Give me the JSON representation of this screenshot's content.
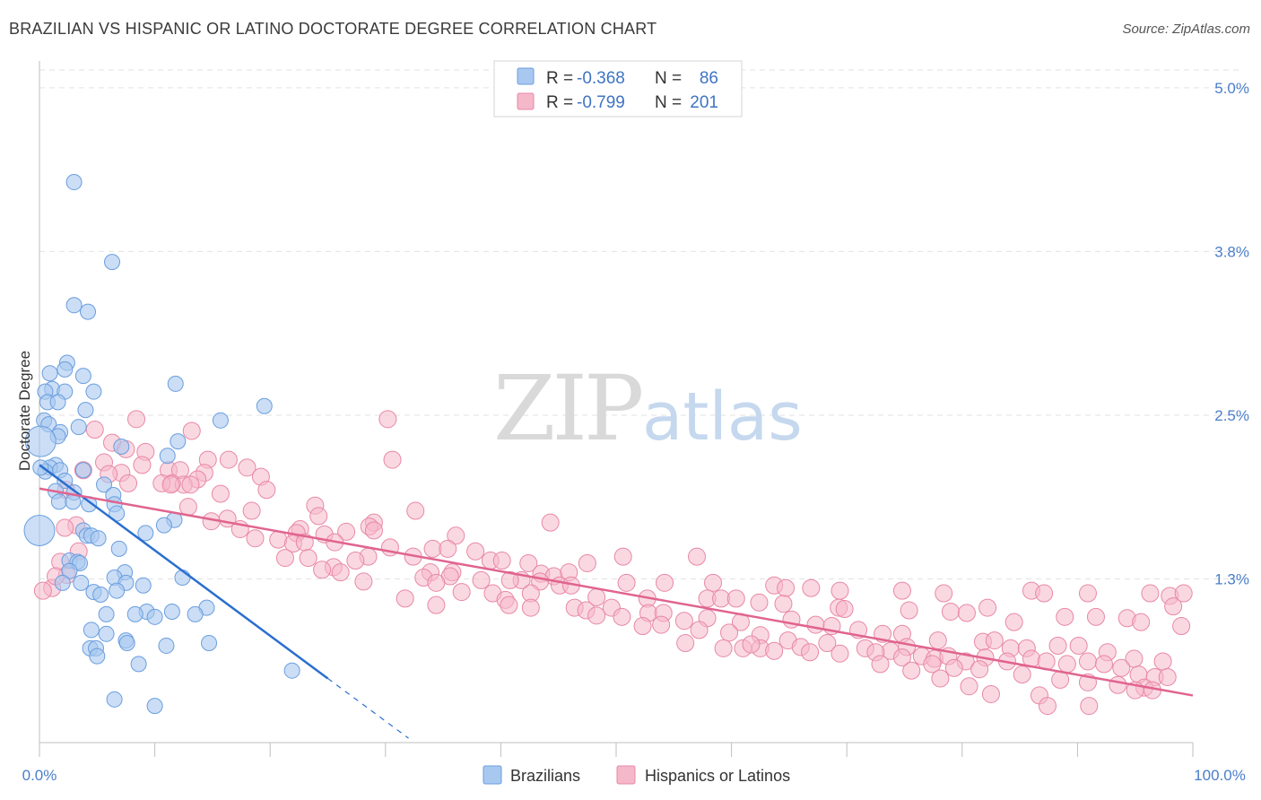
{
  "title": "BRAZILIAN VS HISPANIC OR LATINO DOCTORATE DEGREE CORRELATION CHART",
  "source": "Source: ZipAtlas.com",
  "watermark": {
    "zip": "ZIP",
    "atlas": "atlas"
  },
  "colors": {
    "blue_fill": "#a9c8f0",
    "blue_stroke": "#6a9ede",
    "blue_line": "#2a6fcf",
    "pink_fill": "#f5b8cb",
    "pink_stroke": "#e888a6",
    "pink_line": "#e0648f",
    "grid": "#e2e2e2",
    "axis_text": "#4a7ec9"
  },
  "legend": {
    "rows": [
      {
        "r_label": "R =",
        "r_value": "-0.368",
        "n_label": "N =",
        "n_value": "86"
      },
      {
        "r_label": "R =",
        "r_value": "-0.799",
        "n_label": "N =",
        "n_value": "201"
      }
    ]
  },
  "bottom_legend": [
    "Brazilians",
    "Hispanics or Latinos"
  ],
  "chart_data": {
    "type": "scatter",
    "title": "BRAZILIAN VS HISPANIC OR LATINO DOCTORATE DEGREE CORRELATION CHART",
    "ylabel": "Doctorate Degree",
    "xlabel": "",
    "x_tick_labels": [
      "0.0%",
      "100.0%"
    ],
    "y_tick_labels": [
      "5.0%",
      "3.8%",
      "2.5%",
      "1.3%"
    ],
    "y_ticks": [
      5.0,
      3.75,
      2.5,
      1.25
    ],
    "xlim": [
      0,
      100
    ],
    "ylim": [
      0,
      5.15
    ],
    "grid": true,
    "legend_position": "top-center",
    "series": [
      {
        "name": "Brazilians",
        "color": "#a9c8f0",
        "trend": {
          "x0": 0,
          "y0": 2.12,
          "x1": 25,
          "y1": 0.49,
          "dash_to_x": 32
        },
        "points": [
          [
            3,
            4.28
          ],
          [
            6.3,
            3.67
          ],
          [
            3,
            3.34
          ],
          [
            4.2,
            3.29
          ],
          [
            2.4,
            2.9
          ],
          [
            0.9,
            2.82
          ],
          [
            2.2,
            2.85
          ],
          [
            3.8,
            2.8
          ],
          [
            11.8,
            2.74
          ],
          [
            1.1,
            2.7
          ],
          [
            0.5,
            2.68
          ],
          [
            2.2,
            2.68
          ],
          [
            4.7,
            2.68
          ],
          [
            0.7,
            2.6
          ],
          [
            1.6,
            2.6
          ],
          [
            19.5,
            2.57
          ],
          [
            4,
            2.54
          ],
          [
            15.7,
            2.46
          ],
          [
            0.4,
            2.46
          ],
          [
            0.8,
            2.43
          ],
          [
            3.4,
            2.41
          ],
          [
            1.8,
            2.37
          ],
          [
            1.6,
            2.34
          ],
          [
            12,
            2.3
          ],
          [
            7.1,
            2.26
          ],
          [
            11.1,
            2.19
          ],
          [
            1.4,
            2.12
          ],
          [
            0.9,
            2.1
          ],
          [
            1.8,
            2.08
          ],
          [
            0.5,
            2.07
          ],
          [
            3.8,
            2.08
          ],
          [
            0.1,
            2.1
          ],
          [
            2.2,
            2.0
          ],
          [
            5.6,
            1.97
          ],
          [
            1.4,
            1.92
          ],
          [
            3,
            1.91
          ],
          [
            6.4,
            1.89
          ],
          [
            1.7,
            1.84
          ],
          [
            2.9,
            1.84
          ],
          [
            6.5,
            1.82
          ],
          [
            4.3,
            1.82
          ],
          [
            6.7,
            1.75
          ],
          [
            0,
            1.62
          ],
          [
            11.7,
            1.7
          ],
          [
            10.8,
            1.66
          ],
          [
            3.8,
            1.62
          ],
          [
            9.2,
            1.6
          ],
          [
            4.1,
            1.58
          ],
          [
            4.5,
            1.58
          ],
          [
            5.1,
            1.56
          ],
          [
            6.9,
            1.48
          ],
          [
            2.6,
            1.39
          ],
          [
            3.3,
            1.38
          ],
          [
            3.5,
            1.37
          ],
          [
            2.6,
            1.31
          ],
          [
            7.4,
            1.3
          ],
          [
            6.5,
            1.26
          ],
          [
            12.4,
            1.26
          ],
          [
            7.5,
            1.22
          ],
          [
            2,
            1.22
          ],
          [
            3.6,
            1.22
          ],
          [
            9,
            1.2
          ],
          [
            6.7,
            1.16
          ],
          [
            4.7,
            1.15
          ],
          [
            5.3,
            1.13
          ],
          [
            14.5,
            1.03
          ],
          [
            9.3,
            1.0
          ],
          [
            11.5,
            1.0
          ],
          [
            8.3,
            0.98
          ],
          [
            5.8,
            0.98
          ],
          [
            10,
            0.96
          ],
          [
            13.5,
            0.98
          ],
          [
            4.5,
            0.86
          ],
          [
            5.8,
            0.83
          ],
          [
            7.5,
            0.78
          ],
          [
            7.6,
            0.76
          ],
          [
            14.7,
            0.76
          ],
          [
            11,
            0.74
          ],
          [
            4.4,
            0.72
          ],
          [
            4.9,
            0.72
          ],
          [
            5,
            0.66
          ],
          [
            8.6,
            0.6
          ],
          [
            21.9,
            0.55
          ],
          [
            6.5,
            0.33
          ],
          [
            10,
            0.28
          ],
          [
            0.1,
            2.3
          ]
        ]
      },
      {
        "name": "Hispanics or Latinos",
        "color": "#f5b8cb",
        "trend": {
          "x0": 0,
          "y0": 1.94,
          "x1": 100,
          "y1": 0.36
        },
        "points": [
          [
            30.2,
            2.47
          ],
          [
            8.4,
            2.47
          ],
          [
            4.8,
            2.39
          ],
          [
            13.2,
            2.38
          ],
          [
            6.3,
            2.29
          ],
          [
            7.5,
            2.24
          ],
          [
            9.2,
            2.22
          ],
          [
            16.4,
            2.16
          ],
          [
            14.6,
            2.16
          ],
          [
            30.6,
            2.16
          ],
          [
            5.6,
            2.14
          ],
          [
            8.9,
            2.12
          ],
          [
            18,
            2.1
          ],
          [
            11.2,
            2.08
          ],
          [
            12.2,
            2.08
          ],
          [
            3.8,
            2.08
          ],
          [
            7.1,
            2.06
          ],
          [
            14.3,
            2.06
          ],
          [
            6,
            2.05
          ],
          [
            19.2,
            2.03
          ],
          [
            13.7,
            2.01
          ],
          [
            11.5,
            1.98
          ],
          [
            12.5,
            1.97
          ],
          [
            10.6,
            1.98
          ],
          [
            19.7,
            1.93
          ],
          [
            2.3,
            1.93
          ],
          [
            15.7,
            1.9
          ],
          [
            7.7,
            1.98
          ],
          [
            11.4,
            1.97
          ],
          [
            13.1,
            1.97
          ],
          [
            12.9,
            1.8
          ],
          [
            23.9,
            1.81
          ],
          [
            32.6,
            1.77
          ],
          [
            18.4,
            1.77
          ],
          [
            24.2,
            1.73
          ],
          [
            16.3,
            1.71
          ],
          [
            14.9,
            1.69
          ],
          [
            17.4,
            1.63
          ],
          [
            22.6,
            1.63
          ],
          [
            29,
            1.68
          ],
          [
            3.2,
            1.66
          ],
          [
            22.3,
            1.6
          ],
          [
            24.7,
            1.59
          ],
          [
            26.6,
            1.61
          ],
          [
            28.6,
            1.65
          ],
          [
            29,
            1.62
          ],
          [
            44.3,
            1.68
          ],
          [
            36.1,
            1.58
          ],
          [
            18.7,
            1.56
          ],
          [
            20.7,
            1.55
          ],
          [
            22,
            1.52
          ],
          [
            23,
            1.53
          ],
          [
            25.6,
            1.53
          ],
          [
            30.4,
            1.49
          ],
          [
            34.1,
            1.48
          ],
          [
            35.4,
            1.48
          ],
          [
            37.8,
            1.46
          ],
          [
            28.5,
            1.42
          ],
          [
            21.3,
            1.41
          ],
          [
            23.3,
            1.41
          ],
          [
            27.4,
            1.39
          ],
          [
            32.4,
            1.42
          ],
          [
            39.1,
            1.39
          ],
          [
            40.1,
            1.39
          ],
          [
            42.4,
            1.37
          ],
          [
            47.5,
            1.37
          ],
          [
            50.6,
            1.42
          ],
          [
            57,
            1.42
          ],
          [
            1.8,
            1.38
          ],
          [
            2.4,
            1.28
          ],
          [
            3.4,
            1.46
          ],
          [
            25.5,
            1.34
          ],
          [
            24.5,
            1.32
          ],
          [
            26.1,
            1.3
          ],
          [
            33.9,
            1.3
          ],
          [
            35.8,
            1.3
          ],
          [
            33.3,
            1.26
          ],
          [
            43.5,
            1.29
          ],
          [
            44.6,
            1.27
          ],
          [
            45.9,
            1.3
          ],
          [
            41.8,
            1.24
          ],
          [
            40.8,
            1.24
          ],
          [
            38.3,
            1.24
          ],
          [
            35.6,
            1.27
          ],
          [
            28.1,
            1.23
          ],
          [
            34.4,
            1.22
          ],
          [
            43.4,
            1.23
          ],
          [
            45.1,
            1.2
          ],
          [
            46.1,
            1.2
          ],
          [
            50.9,
            1.22
          ],
          [
            54.2,
            1.22
          ],
          [
            58.4,
            1.22
          ],
          [
            63.7,
            1.2
          ],
          [
            64.7,
            1.18
          ],
          [
            66.9,
            1.18
          ],
          [
            69.4,
            1.16
          ],
          [
            74.8,
            1.16
          ],
          [
            78.4,
            1.14
          ],
          [
            86,
            1.16
          ],
          [
            87.1,
            1.14
          ],
          [
            90.9,
            1.14
          ],
          [
            96.3,
            1.14
          ],
          [
            98,
            1.12
          ],
          [
            98.3,
            1.04
          ],
          [
            99.2,
            1.14
          ],
          [
            36.6,
            1.15
          ],
          [
            39.3,
            1.14
          ],
          [
            40.4,
            1.09
          ],
          [
            42.6,
            1.14
          ],
          [
            48.3,
            1.11
          ],
          [
            52.7,
            1.1
          ],
          [
            57.9,
            1.1
          ],
          [
            59.1,
            1.1
          ],
          [
            60.4,
            1.1
          ],
          [
            62.4,
            1.07
          ],
          [
            64.5,
            1.06
          ],
          [
            69.3,
            1.03
          ],
          [
            69.8,
            1.02
          ],
          [
            75.4,
            1.01
          ],
          [
            79,
            1.0
          ],
          [
            80.4,
            0.99
          ],
          [
            82.2,
            1.03
          ],
          [
            84.5,
            0.92
          ],
          [
            88.9,
            0.96
          ],
          [
            91.6,
            0.96
          ],
          [
            94.3,
            0.95
          ],
          [
            95.5,
            0.92
          ],
          [
            99,
            0.89
          ],
          [
            31.7,
            1.1
          ],
          [
            34.4,
            1.05
          ],
          [
            40.7,
            1.05
          ],
          [
            42.6,
            1.03
          ],
          [
            46.4,
            1.03
          ],
          [
            47.4,
            1.01
          ],
          [
            49.6,
            1.03
          ],
          [
            52.8,
            0.99
          ],
          [
            54.1,
            0.99
          ],
          [
            55.9,
            0.93
          ],
          [
            57.9,
            0.95
          ],
          [
            60.8,
            0.92
          ],
          [
            65.2,
            0.94
          ],
          [
            67.3,
            0.9
          ],
          [
            68.7,
            0.89
          ],
          [
            71,
            0.86
          ],
          [
            73.1,
            0.83
          ],
          [
            74.8,
            0.83
          ],
          [
            77.9,
            0.78
          ],
          [
            81.8,
            0.77
          ],
          [
            82.8,
            0.78
          ],
          [
            84.2,
            0.72
          ],
          [
            85.6,
            0.72
          ],
          [
            88.3,
            0.74
          ],
          [
            90.1,
            0.74
          ],
          [
            92.6,
            0.69
          ],
          [
            94.9,
            0.64
          ],
          [
            97.4,
            0.62
          ],
          [
            48.3,
            0.97
          ],
          [
            50.5,
            0.96
          ],
          [
            52.3,
            0.89
          ],
          [
            53.9,
            0.9
          ],
          [
            57.2,
            0.86
          ],
          [
            59.8,
            0.84
          ],
          [
            62.5,
            0.82
          ],
          [
            64.9,
            0.78
          ],
          [
            66,
            0.73
          ],
          [
            68.3,
            0.76
          ],
          [
            71.6,
            0.72
          ],
          [
            73.8,
            0.7
          ],
          [
            75.2,
            0.73
          ],
          [
            76.5,
            0.66
          ],
          [
            77.6,
            0.64
          ],
          [
            78.8,
            0.66
          ],
          [
            80.3,
            0.62
          ],
          [
            82,
            0.65
          ],
          [
            83.9,
            0.62
          ],
          [
            86,
            0.64
          ],
          [
            87.3,
            0.62
          ],
          [
            89.1,
            0.6
          ],
          [
            90.9,
            0.62
          ],
          [
            92.3,
            0.6
          ],
          [
            93.8,
            0.57
          ],
          [
            95.3,
            0.52
          ],
          [
            96.7,
            0.5
          ],
          [
            97.8,
            0.5
          ],
          [
            56,
            0.76
          ],
          [
            59.3,
            0.72
          ],
          [
            61,
            0.72
          ],
          [
            62.5,
            0.72
          ],
          [
            63.7,
            0.7
          ],
          [
            66.8,
            0.69
          ],
          [
            69.4,
            0.68
          ],
          [
            72.5,
            0.69
          ],
          [
            74.8,
            0.65
          ],
          [
            77.4,
            0.6
          ],
          [
            79.3,
            0.57
          ],
          [
            81.5,
            0.56
          ],
          [
            85.2,
            0.52
          ],
          [
            88.5,
            0.48
          ],
          [
            90.9,
            0.46
          ],
          [
            93.5,
            0.44
          ],
          [
            95.8,
            0.42
          ],
          [
            96.5,
            0.4
          ],
          [
            1.1,
            1.18
          ],
          [
            0.3,
            1.16
          ],
          [
            2.2,
            1.64
          ],
          [
            1.4,
            1.27
          ],
          [
            61.7,
            0.75
          ],
          [
            72.9,
            0.6
          ],
          [
            75.6,
            0.55
          ],
          [
            78.1,
            0.49
          ],
          [
            80.6,
            0.43
          ],
          [
            82.5,
            0.37
          ],
          [
            86.7,
            0.36
          ],
          [
            87.4,
            0.28
          ],
          [
            91,
            0.28
          ],
          [
            95,
            0.4
          ]
        ]
      }
    ]
  }
}
